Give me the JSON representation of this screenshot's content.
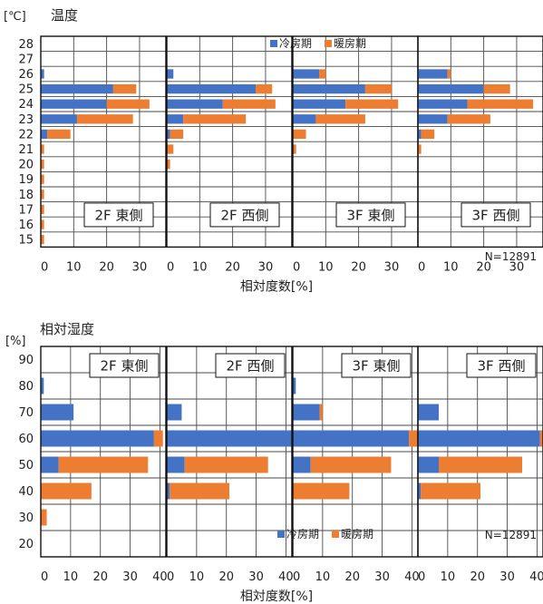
{
  "chart_data": [
    {
      "type": "bar",
      "orientation": "horizontal",
      "stacked": true,
      "title": "温度",
      "unit": "[℃]",
      "xlabel": "相対度数[%]",
      "xlim": [
        0,
        38
      ],
      "x_ticks": [
        "0",
        "10",
        "20",
        "30"
      ],
      "categories": [
        "28",
        "27",
        "26",
        "25",
        "24",
        "23",
        "22",
        "21",
        "20",
        "19",
        "18",
        "17",
        "16",
        "15"
      ],
      "grid": true,
      "legend": {
        "position": "top-right",
        "items": [
          "冷房期",
          "暖房期"
        ]
      },
      "series_colors": {
        "冷房期": "#4472c4",
        "暖房期": "#ed7d31"
      },
      "n_label": "N=12891",
      "panels": [
        {
          "label": "2F 東側",
          "冷房期": [
            0,
            0,
            1,
            22,
            20,
            11,
            2,
            0,
            0,
            0,
            0,
            0,
            0,
            0
          ],
          "暖房期": [
            0,
            0,
            0,
            7,
            13,
            17,
            7,
            1,
            1,
            1,
            1,
            1,
            1,
            1
          ]
        },
        {
          "label": "2F 西側",
          "冷房期": [
            0,
            0,
            2,
            27,
            17,
            5,
            1,
            0,
            0,
            0,
            0,
            0,
            0,
            0
          ],
          "暖房期": [
            0,
            0,
            0,
            5,
            16,
            19,
            4,
            2,
            1,
            0,
            0,
            0,
            0,
            0
          ]
        },
        {
          "label": "3F 東側",
          "冷房期": [
            0,
            0,
            8,
            22,
            16,
            7,
            0,
            0,
            0,
            0,
            0,
            0,
            0,
            0
          ],
          "暖房期": [
            0,
            0,
            2,
            8,
            16,
            15,
            4,
            1,
            0,
            0,
            0,
            0,
            0,
            0
          ]
        },
        {
          "label": "3F 西側",
          "冷房期": [
            0,
            0,
            9,
            20,
            15,
            9,
            1,
            0,
            0,
            0,
            0,
            0,
            0,
            0
          ],
          "暖房期": [
            0,
            0,
            1,
            8,
            20,
            13,
            4,
            1,
            0,
            0,
            0,
            0,
            0,
            0
          ]
        }
      ]
    },
    {
      "type": "bar",
      "orientation": "horizontal",
      "stacked": true,
      "title": "相対湿度",
      "unit": "[%]",
      "xlabel": "相対度数[%]",
      "xlim": [
        0,
        42
      ],
      "x_ticks": [
        "0",
        "10",
        "20",
        "30",
        "40"
      ],
      "categories": [
        "90",
        "80",
        "70",
        "60",
        "50",
        "40",
        "30",
        "20"
      ],
      "grid": true,
      "legend": {
        "position": "bottom-right",
        "items": [
          "冷房期",
          "暖房期"
        ]
      },
      "series_colors": {
        "冷房期": "#4472c4",
        "暖房期": "#ed7d31"
      },
      "n_label": "N=12891",
      "panels": [
        {
          "label": "2F 東側",
          "冷房期": [
            0,
            1,
            11,
            38,
            6,
            0,
            0,
            0
          ],
          "暖房期": [
            0,
            0,
            0,
            3,
            30,
            17,
            2,
            0
          ]
        },
        {
          "label": "2F 西側",
          "冷房期": [
            0,
            0,
            5,
            43,
            6,
            1,
            0,
            0
          ],
          "暖房期": [
            0,
            0,
            0,
            2,
            28,
            20,
            0,
            0
          ]
        },
        {
          "label": "3F 東側",
          "冷房期": [
            0,
            1,
            9,
            39,
            6,
            0,
            0,
            0
          ],
          "暖房期": [
            0,
            0,
            1,
            4,
            27,
            19,
            0,
            0
          ]
        },
        {
          "label": "3F 西側",
          "冷房期": [
            0,
            0,
            7,
            41,
            7,
            1,
            0,
            0
          ],
          "暖房期": [
            0,
            0,
            0,
            2,
            28,
            20,
            0,
            0
          ]
        }
      ]
    }
  ]
}
